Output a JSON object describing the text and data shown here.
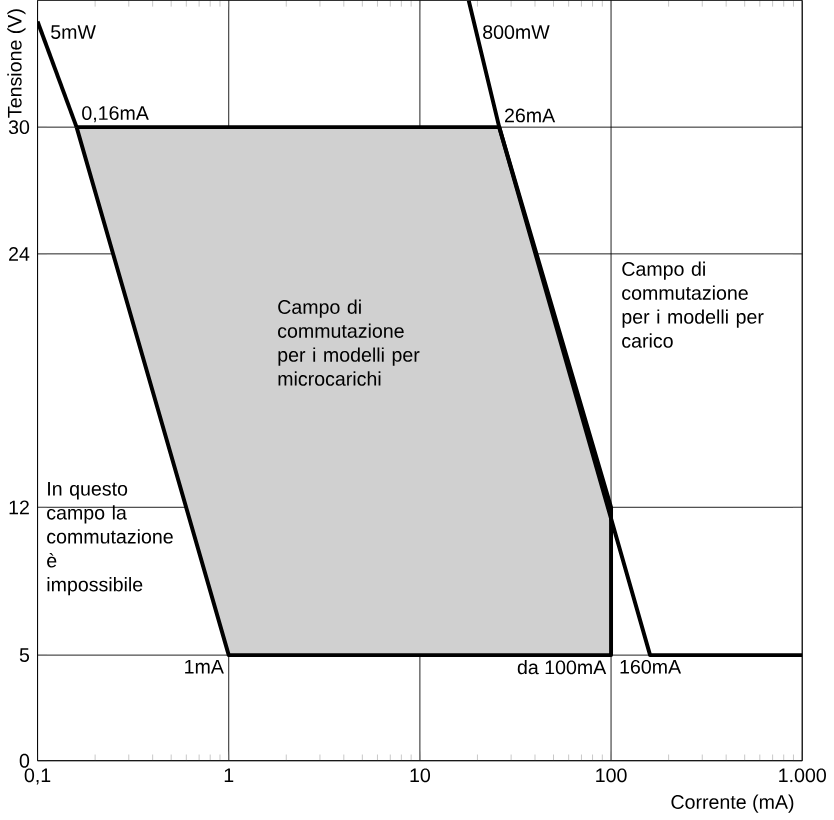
{
  "chart_data": {
    "type": "line",
    "xlabel": "Corrente (mA)",
    "ylabel": "Tensione (V)",
    "log": "x",
    "grid": true,
    "xlim": [
      0.1,
      1000
    ],
    "ylim": [
      0,
      36
    ],
    "xticks": [
      {
        "value": 0.1,
        "label": "0,1"
      },
      1,
      10,
      100,
      {
        "value": 1000,
        "label": "1.000"
      }
    ],
    "yticks": [
      0,
      5,
      12,
      24,
      30
    ],
    "series": [
      {
        "type": "area",
        "color": "#d0d0d0",
        "x": [
          0.16,
          26,
          100,
          100,
          1,
          0.16
        ],
        "values": [
          30,
          30,
          12,
          5,
          5,
          30
        ]
      },
      {
        "color": "#000000",
        "x": [
          0.1,
          0.16
        ],
        "values": [
          35,
          30
        ]
      },
      {
        "color": "#000000",
        "x": [
          18,
          26,
          160,
          1000
        ],
        "values": [
          36,
          30,
          5,
          5
        ]
      }
    ],
    "annotations": [
      {
        "text": "5mW",
        "x": 0.11,
        "y": 34.5
      },
      {
        "text": "800mW",
        "x": 20,
        "y": 34.5
      },
      {
        "text": "0,16mA",
        "x": 0.16,
        "y": 30
      },
      {
        "text": "26mA",
        "x": 26,
        "y": 30
      },
      {
        "text": "1mA",
        "x": 1,
        "y": 5
      },
      {
        "text": "da 100mA",
        "x": 100,
        "y": 5
      },
      {
        "text": "160mA",
        "x": 160,
        "y": 5
      },
      "In questo campo la commutazione è impossibile",
      "Campo di commutazione per i modelli per microcarichi",
      "Campo di commutazione per i modelli per carico"
    ]
  }
}
